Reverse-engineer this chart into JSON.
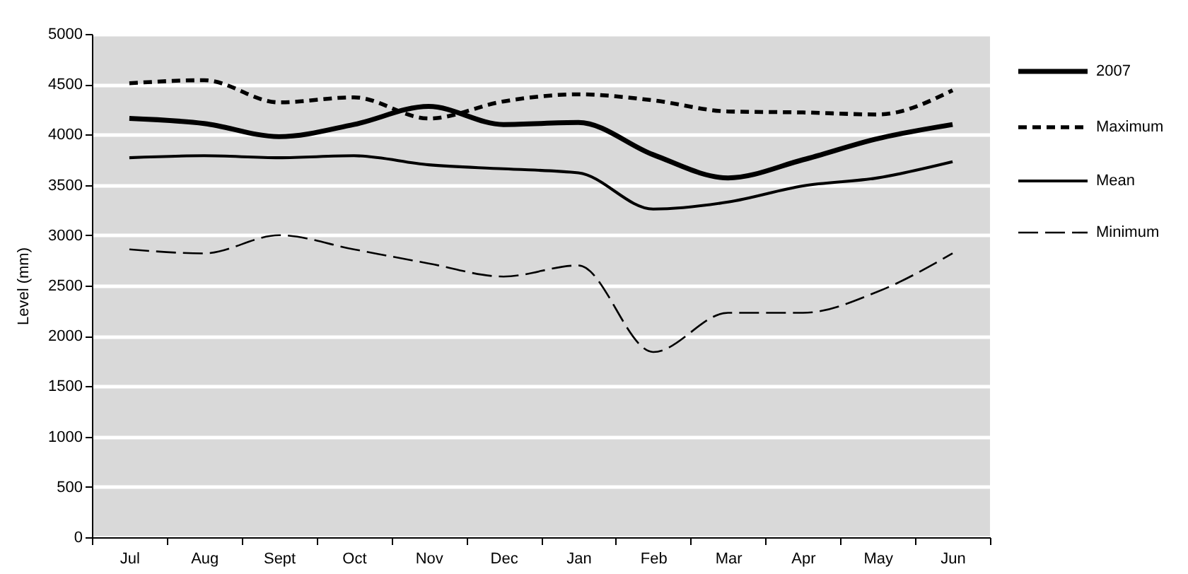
{
  "chart_data": {
    "type": "line",
    "ylabel": "Level (mm)",
    "categories": [
      "Jul",
      "Aug",
      "Sept",
      "Oct",
      "Nov",
      "Dec",
      "Jan",
      "Feb",
      "Mar",
      "Apr",
      "May",
      "Jun"
    ],
    "series": [
      {
        "name": "2007",
        "color": "#000000",
        "line_style": "solid",
        "values": [
          4160,
          4110,
          3980,
          4100,
          4280,
          4100,
          4120,
          3800,
          3570,
          3750,
          3960,
          4100
        ]
      },
      {
        "name": "Maximum",
        "color": "#000000",
        "line_style": "dashed",
        "values": [
          4510,
          4540,
          4320,
          4370,
          4160,
          4330,
          4400,
          4340,
          4230,
          4220,
          4200,
          4440
        ]
      },
      {
        "name": "Mean",
        "color": "#000000",
        "line_style": "solid",
        "values": [
          3770,
          3790,
          3770,
          3790,
          3700,
          3660,
          3620,
          3260,
          3330,
          3490,
          3570,
          3730
        ]
      },
      {
        "name": "Minimum",
        "color": "#000000",
        "line_style": "dashed",
        "values": [
          2860,
          2820,
          3000,
          2860,
          2720,
          2590,
          2700,
          1840,
          2230,
          2230,
          2440,
          2820
        ]
      }
    ],
    "ylim": [
      0,
      5000
    ],
    "yticks": [
      0,
      500,
      1000,
      1500,
      2000,
      2500,
      3000,
      3500,
      4000,
      4500,
      5000
    ],
    "grid": "y",
    "legend": "top right",
    "marker": "none"
  }
}
